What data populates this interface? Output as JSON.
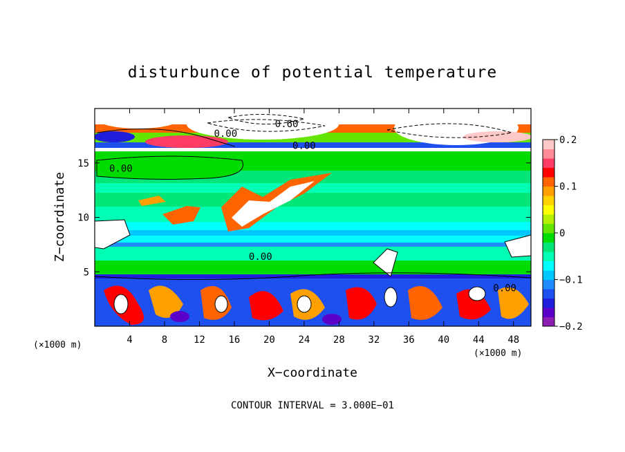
{
  "chart_data": {
    "type": "heatmap",
    "title": "disturbunce of potential temperature",
    "xlabel": "X−coordinate",
    "ylabel": "Z−coordinate",
    "x_unit_left": "(×1000 m)",
    "x_unit_right": "(×1000 m)",
    "xlim": [
      0,
      50
    ],
    "ylim": [
      0,
      20
    ],
    "x_ticks": [
      4,
      8,
      12,
      16,
      20,
      24,
      28,
      32,
      36,
      40,
      44,
      48
    ],
    "x_tick_labels": [
      "4",
      "8",
      "12",
      "16",
      "20",
      "24",
      "28",
      "32",
      "36",
      "40",
      "44",
      "48"
    ],
    "y_ticks": [
      5,
      10,
      15
    ],
    "y_tick_labels": [
      "5",
      "10",
      "15"
    ],
    "colorbar": {
      "min": -0.2,
      "max": 0.2,
      "tick_values": [
        0.2,
        0.1,
        0,
        -0.1,
        -0.2
      ],
      "tick_labels": [
        "0.2",
        "0.1",
        "0",
        "−0.1",
        "−0.2"
      ],
      "colors": [
        "#8c1eb4",
        "#5a00c8",
        "#1e1edc",
        "#1e50f0",
        "#1e8cff",
        "#00c8ff",
        "#00ffff",
        "#00ffb4",
        "#00e678",
        "#00dc00",
        "#64e600",
        "#b4f000",
        "#ffff00",
        "#ffd200",
        "#ffa000",
        "#ff6400",
        "#ff0000",
        "#ff3c64",
        "#ff8c96",
        "#ffc8c8"
      ]
    },
    "contour_labels": [
      {
        "text": "0.00",
        "x": 15.0,
        "z": 17.4
      },
      {
        "text": "0.60",
        "x": 22.0,
        "z": 18.3
      },
      {
        "text": "0.00",
        "x": 24.0,
        "z": 16.3
      },
      {
        "text": "0.00",
        "x": 3.0,
        "z": 14.2
      },
      {
        "text": "0.00",
        "x": 19.0,
        "z": 6.1
      },
      {
        "text": "0.00",
        "x": 47.0,
        "z": 3.2
      }
    ],
    "contour_interval_text": "CONTOUR INTERVAL = 3.000E−01"
  }
}
